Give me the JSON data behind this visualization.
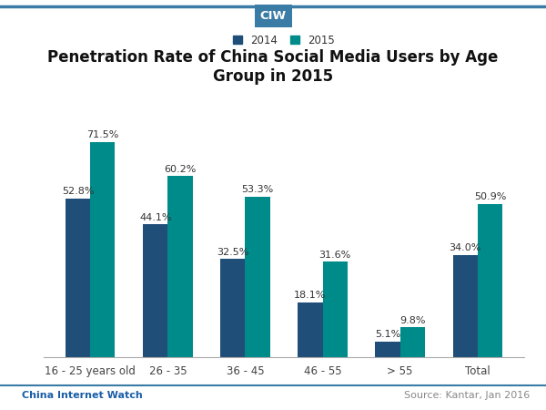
{
  "title": "Penetration Rate of China Social Media Users by Age\nGroup in 2015",
  "categories": [
    "16 - 25 years old",
    "26 - 35",
    "36 - 45",
    "46 - 55",
    "> 55",
    "Total"
  ],
  "values_2014": [
    52.8,
    44.1,
    32.5,
    18.1,
    5.1,
    34.0
  ],
  "values_2015": [
    71.5,
    60.2,
    53.3,
    31.6,
    9.8,
    50.9
  ],
  "color_2014": "#1F4E79",
  "color_2015": "#008B8B",
  "legend_labels": [
    "2014",
    "2015"
  ],
  "bar_width": 0.32,
  "ylim": [
    0,
    82
  ],
  "background_color": "#ffffff",
  "ciw_box_color": "#3a7ca5",
  "ciw_text_color": "#ffffff",
  "header_text": "CIW",
  "footer_left": "China Internet Watch",
  "footer_right": "Source: Kantar, Jan 2016",
  "title_fontsize": 12,
  "label_fontsize": 8.5,
  "value_fontsize": 8,
  "footer_fontsize": 8,
  "legend_fontsize": 8.5
}
